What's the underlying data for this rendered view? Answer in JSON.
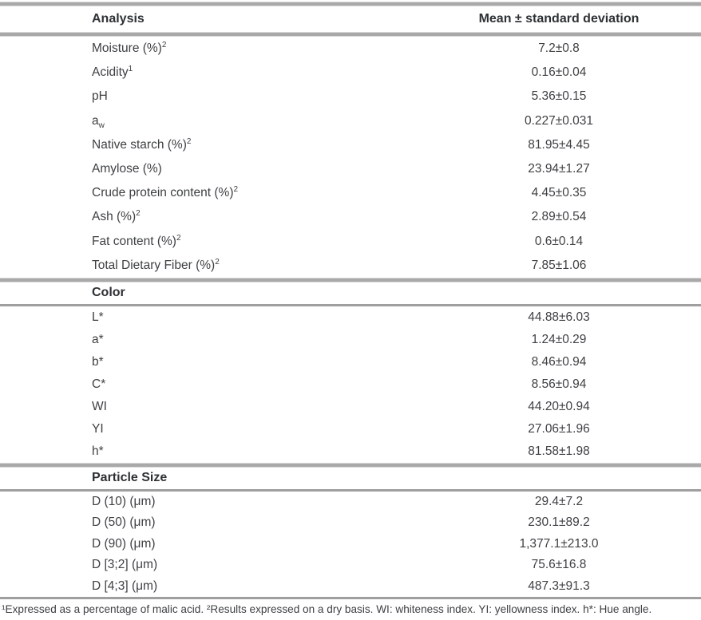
{
  "table": {
    "columns": {
      "analysis": "Analysis",
      "mean": "Mean ± standard deviation"
    },
    "sections": [
      {
        "title": null,
        "rows": [
          {
            "label": "Moisture (%)",
            "sup": "2",
            "value": "7.2±0.8"
          },
          {
            "label": "Acidity",
            "sup": "1",
            "value": "0.16±0.04"
          },
          {
            "label": "pH",
            "value": "5.36±0.15"
          },
          {
            "label": "a",
            "sub": "w",
            "value": "0.227±0.031"
          },
          {
            "label": "Native starch (%)",
            "sup": "2",
            "value": "81.95±4.45"
          },
          {
            "label": "Amylose (%)",
            "value": "23.94±1.27"
          },
          {
            "label": "Crude protein content (%)",
            "sup": "2",
            "value": "4.45±0.35"
          },
          {
            "label": "Ash (%)",
            "sup": "2",
            "value": "2.89±0.54"
          },
          {
            "label": "Fat content (%)",
            "sup": "2",
            "value": "0.6±0.14"
          },
          {
            "label": "Total Dietary Fiber (%)",
            "sup": "2",
            "value": "7.85±1.06"
          }
        ]
      },
      {
        "title": "Color",
        "rows": [
          {
            "label": "L*",
            "value": "44.88±6.03"
          },
          {
            "label": "a*",
            "value": "1.24±0.29"
          },
          {
            "label": "b*",
            "value": "8.46±0.94"
          },
          {
            "label": "C*",
            "value": "8.56±0.94"
          },
          {
            "label": "WI",
            "value": "44.20±0.94"
          },
          {
            "label": "YI",
            "value": "27.06±1.96"
          },
          {
            "label": "h*",
            "value": "81.58±1.98"
          }
        ]
      },
      {
        "title": "Particle Size",
        "rows": [
          {
            "label": "D (10) (μm)",
            "value": "29.4±7.2"
          },
          {
            "label": "D (50) (μm)",
            "value": "230.1±89.2"
          },
          {
            "label": "D (90) (μm)",
            "value": "1,377.1±213.0"
          },
          {
            "label": "D [3;2] (μm)",
            "value": "75.6±16.8"
          },
          {
            "label": "D [4;3] (μm)",
            "value": "487.3±91.3"
          }
        ]
      }
    ],
    "footnote": "¹Expressed as a percentage of malic acid. ²Results expressed on a dry basis. WI: whiteness index. YI: yellowness index. h*: Hue angle."
  },
  "colors": {
    "rule_gray": "#a9a9a9",
    "rule_light_gray": "#d8d8d8",
    "text": "#3e4043",
    "header_text": "#2e3134",
    "background": "#ffffff"
  }
}
